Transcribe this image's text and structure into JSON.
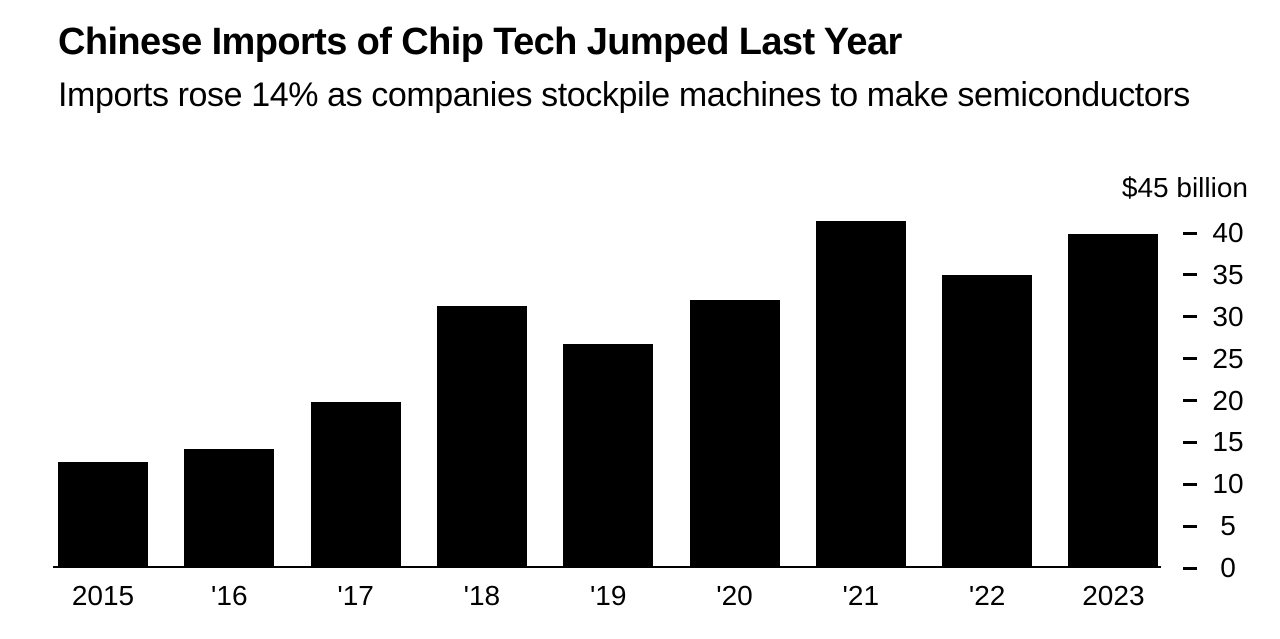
{
  "header": {
    "title": "Chinese Imports of Chip Tech Jumped Last Year",
    "subtitle": "Imports rose 14% as companies stockpile machines to make semiconductors"
  },
  "chart_data": {
    "type": "bar",
    "title": "Chinese Imports of Chip Tech Jumped Last Year",
    "subtitle": "Imports rose 14% as companies stockpile machines to make semiconductors",
    "categories": [
      "2015",
      "'16",
      "'17",
      "'18",
      "'19",
      "'20",
      "'21",
      "'22",
      "2023"
    ],
    "values": [
      12.7,
      14.2,
      19.8,
      31.3,
      26.7,
      32.0,
      41.4,
      35.0,
      39.9
    ],
    "unit_label": "$45 billion",
    "ylabel": "",
    "xlabel": "",
    "y_ticks": [
      0,
      5,
      10,
      15,
      20,
      25,
      30,
      35,
      40
    ],
    "ylim": [
      0,
      45
    ],
    "axis_side": "right",
    "grid": false,
    "legend": false,
    "bar_color": "#000000",
    "text_color": "#000000",
    "background_color": "#ffffff"
  }
}
